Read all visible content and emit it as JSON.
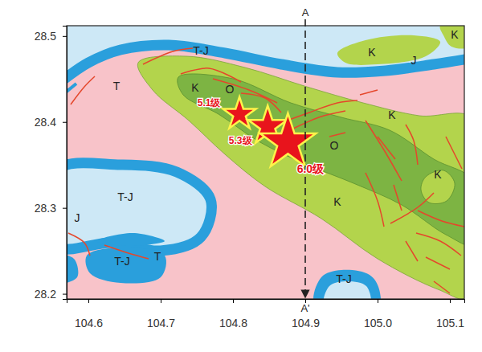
{
  "chart_data": {
    "type": "map",
    "xlim": [
      104.57,
      105.12
    ],
    "ylim": [
      28.194,
      28.512
    ],
    "xticks": [
      104.6,
      104.7,
      104.8,
      104.9,
      {
        "value": 105,
        "label": "105.0"
      },
      105.1
    ],
    "yticks": [
      28.2,
      28.3,
      28.4,
      28.5
    ],
    "points": {
      "x": [
        104.809,
        104.848,
        104.876
      ],
      "y": [
        28.409,
        28.395,
        28.376
      ],
      "magnitude": [
        5.1,
        5.3,
        6.0
      ],
      "labels": [
        "5.1级",
        "5.3级",
        "6.0级"
      ],
      "color": "#e8141c"
    },
    "section": {
      "x": 104.9,
      "labels": [
        "A",
        "A'"
      ]
    },
    "units": [
      "T-J",
      "T",
      "K",
      "O",
      "K",
      "J",
      "K",
      "K",
      "O",
      "K",
      "K",
      "T-J",
      "J",
      "T",
      "T-J",
      "T-J"
    ]
  }
}
